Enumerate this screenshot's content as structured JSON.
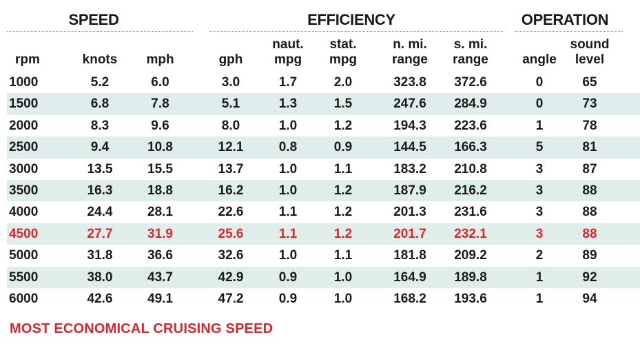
{
  "groups": {
    "speed": "SPEED",
    "efficiency": "EFFICIENCY",
    "operation": "OPERATION"
  },
  "columns": [
    [
      "",
      "rpm"
    ],
    [
      "",
      "knots"
    ],
    [
      "",
      "mph"
    ],
    [
      "",
      "gph"
    ],
    [
      "naut.",
      "mpg"
    ],
    [
      "stat.",
      "mpg"
    ],
    [
      "n. mi.",
      "range"
    ],
    [
      "s. mi.",
      "range"
    ],
    [
      "",
      "angle"
    ],
    [
      "sound",
      "level"
    ]
  ],
  "rows": [
    [
      "1000",
      "5.2",
      "6.0",
      "3.0",
      "1.7",
      "2.0",
      "323.8",
      "372.6",
      "0",
      "65"
    ],
    [
      "1500",
      "6.8",
      "7.8",
      "5.1",
      "1.3",
      "1.5",
      "247.6",
      "284.9",
      "0",
      "73"
    ],
    [
      "2000",
      "8.3",
      "9.6",
      "8.0",
      "1.0",
      "1.2",
      "194.3",
      "223.6",
      "1",
      "78"
    ],
    [
      "2500",
      "9.4",
      "10.8",
      "12.1",
      "0.8",
      "0.9",
      "144.5",
      "166.3",
      "5",
      "81"
    ],
    [
      "3000",
      "13.5",
      "15.5",
      "13.7",
      "1.0",
      "1.1",
      "183.2",
      "210.8",
      "3",
      "87"
    ],
    [
      "3500",
      "16.3",
      "18.8",
      "16.2",
      "1.0",
      "1.2",
      "187.9",
      "216.2",
      "3",
      "88"
    ],
    [
      "4000",
      "24.4",
      "28.1",
      "22.6",
      "1.1",
      "1.2",
      "201.3",
      "231.6",
      "3",
      "88"
    ],
    [
      "4500",
      "27.7",
      "31.9",
      "25.6",
      "1.1",
      "1.2",
      "201.7",
      "232.1",
      "3",
      "88"
    ],
    [
      "5000",
      "31.8",
      "36.6",
      "32.6",
      "1.0",
      "1.1",
      "181.8",
      "209.2",
      "2",
      "89"
    ],
    [
      "5500",
      "38.0",
      "43.7",
      "42.9",
      "0.9",
      "1.0",
      "164.9",
      "189.8",
      "1",
      "92"
    ],
    [
      "6000",
      "42.6",
      "49.1",
      "47.2",
      "0.9",
      "1.0",
      "168.2",
      "193.6",
      "1",
      "94"
    ]
  ],
  "highlight_row": 7,
  "footnote": "MOST ECONOMICAL CRUISING SPEED",
  "colors": {
    "highlight": "#e0242b",
    "row_shade": "#dfeeeb",
    "text": "#1a1a1a"
  }
}
